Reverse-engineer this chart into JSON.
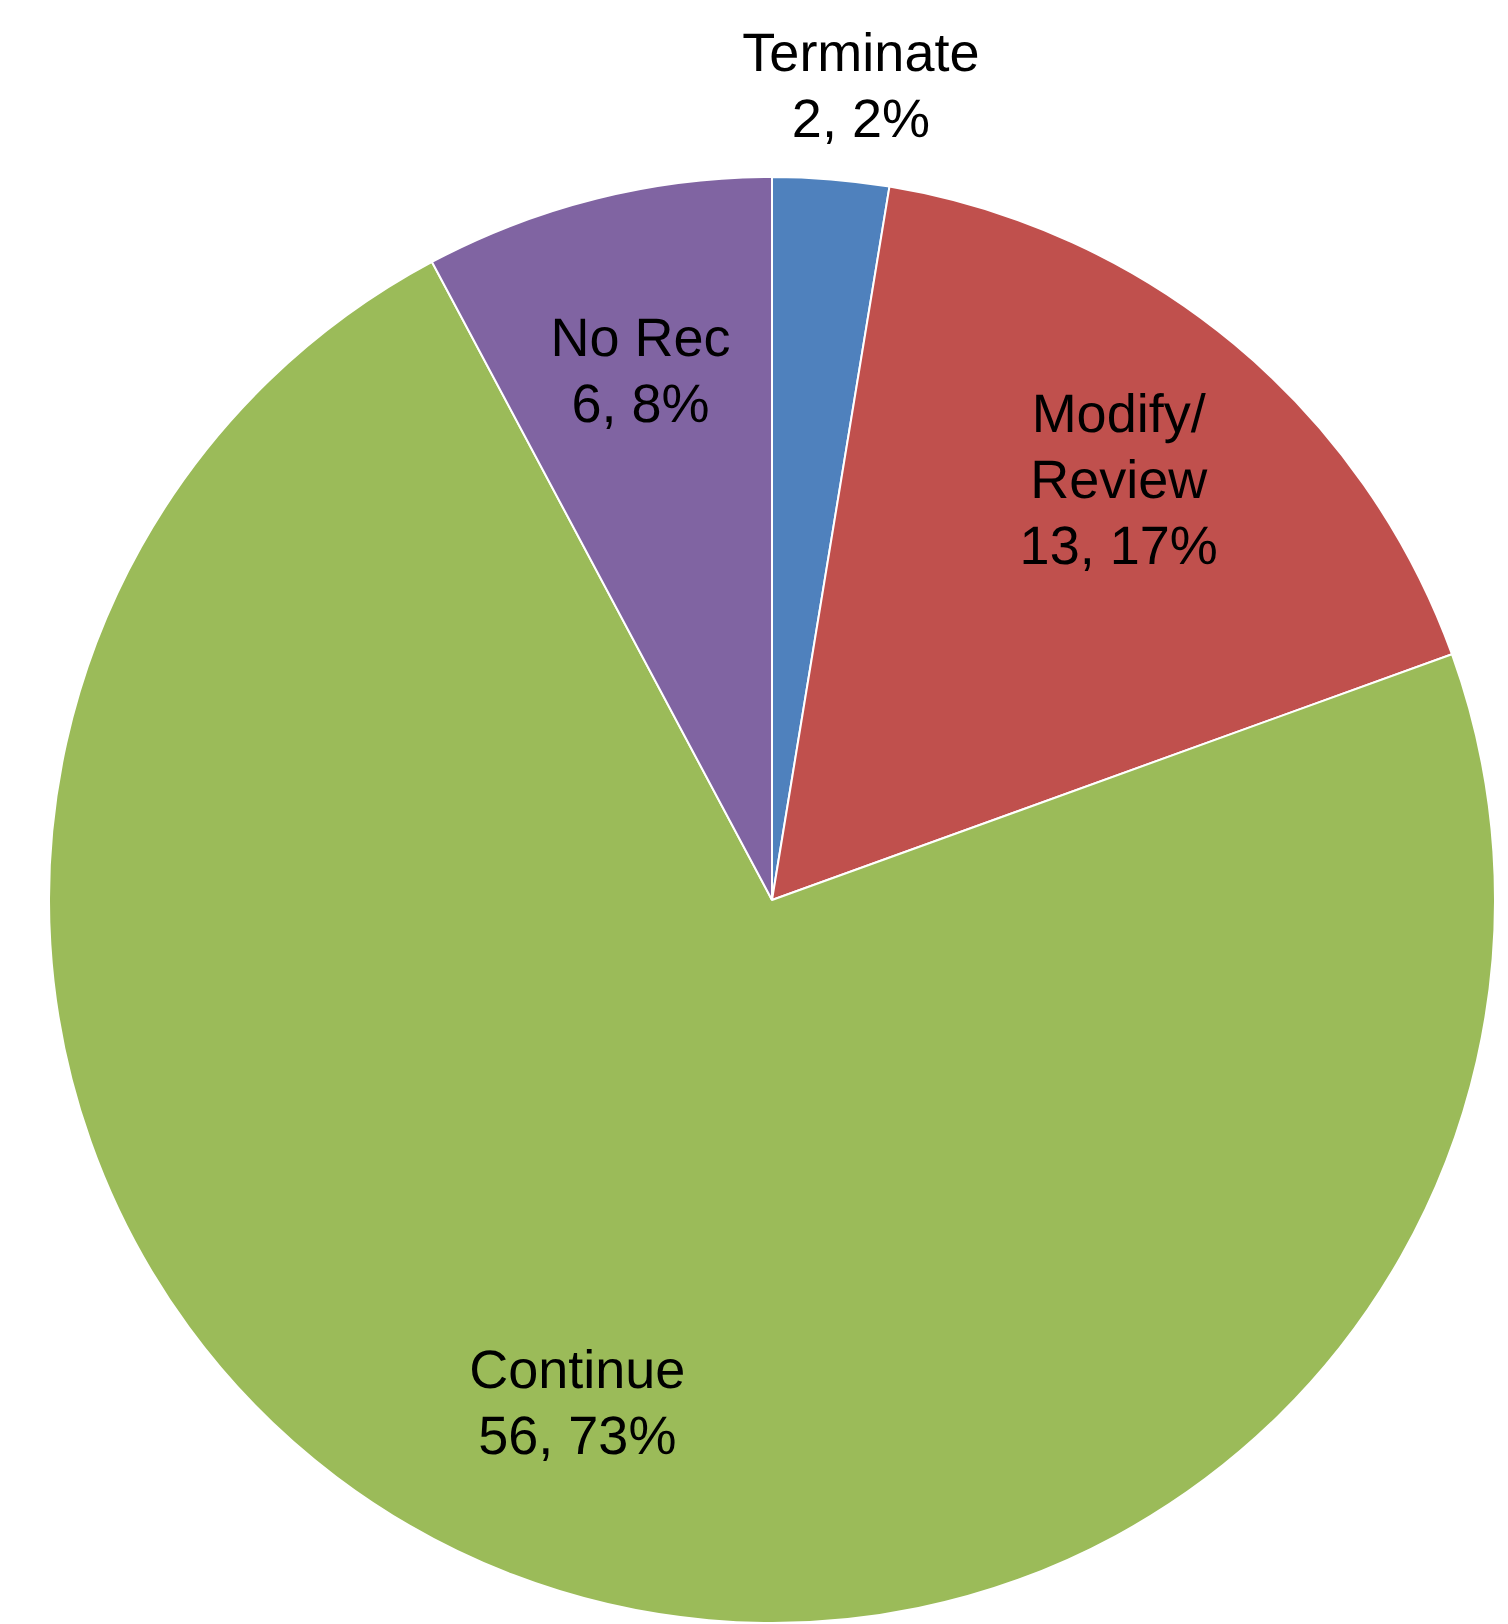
{
  "chart_data": {
    "type": "pie",
    "categories": [
      "Terminate",
      "Modify/\nReview",
      "Continue",
      "No Rec"
    ],
    "values": [
      2,
      13,
      56,
      6
    ],
    "colors": [
      "#4f81bd",
      "#c0504d",
      "#9bbb59",
      "#8064a2"
    ],
    "value_labels": [
      "2, 2%",
      "13, 17%",
      "56, 73%",
      "6, 8%"
    ],
    "legend": false
  }
}
